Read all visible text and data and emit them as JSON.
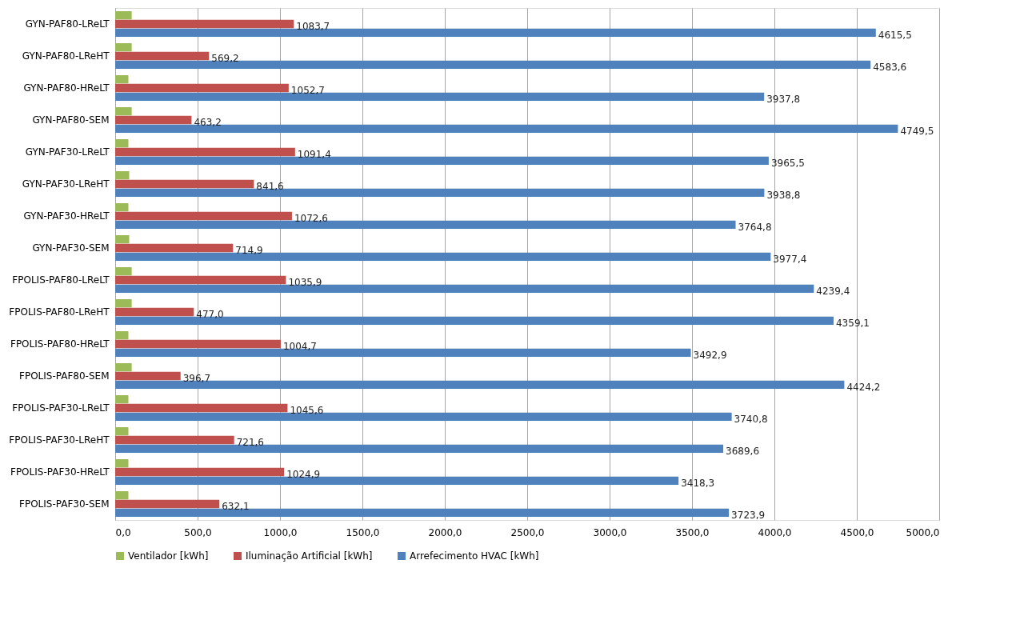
{
  "chart_data": {
    "type": "bar",
    "orientation": "horizontal",
    "categories": [
      "GYN-PAF80-LReLT",
      "GYN-PAF80-LReHT",
      "GYN-PAF80-HReLT",
      "GYN-PAF80-SEM",
      "GYN-PAF30-LReLT",
      "GYN-PAF30-LReHT",
      "GYN-PAF30-HReLT",
      "GYN-PAF30-SEM",
      "FPOLIS-PAF80-LReLT",
      "FPOLIS-PAF80-LReHT",
      "FPOLIS-PAF80-HReLT",
      "FPOLIS-PAF80-SEM",
      "FPOLIS-PAF30-LReLT",
      "FPOLIS-PAF30-LReHT",
      "FPOLIS-PAF30-HReLT",
      "FPOLIS-PAF30-SEM"
    ],
    "series": [
      {
        "name": "Ventilador [kWh]",
        "color": "#9bbb59",
        "values": [
          100,
          100,
          80,
          100,
          80,
          85,
          80,
          85,
          100,
          100,
          80,
          100,
          80,
          80,
          80,
          80
        ]
      },
      {
        "name": "Iluminação Artificial [kWh]",
        "color": "#c0504d",
        "values": [
          1083.7,
          569.2,
          1052.7,
          463.2,
          1091.4,
          841.6,
          1072.6,
          714.9,
          1035.9,
          477.0,
          1004.7,
          396.7,
          1045.6,
          721.6,
          1024.9,
          632.1
        ],
        "value_labels": [
          "1083,7",
          "569,2",
          "1052,7",
          "463,2",
          "1091,4",
          "841,6",
          "1072,6",
          "714,9",
          "1035,9",
          "477,0",
          "1004,7",
          "396,7",
          "1045,6",
          "721,6",
          "1024,9",
          "632,1"
        ]
      },
      {
        "name": "Arrefecimento HVAC [kWh]",
        "color": "#4f81bd",
        "values": [
          4615.5,
          4583.6,
          3937.8,
          4749.5,
          3965.5,
          3938.8,
          3764.8,
          3977.4,
          4239.4,
          4359.1,
          3492.9,
          4424.2,
          3740.8,
          3689.6,
          3418.3,
          3723.9
        ],
        "value_labels": [
          "4615,5",
          "4583,6",
          "3937,8",
          "4749,5",
          "3965,5",
          "3938,8",
          "3764,8",
          "3977,4",
          "4239,4",
          "4359,1",
          "3492,9",
          "4424,2",
          "3740,8",
          "3689,6",
          "3418,3",
          "3723,9"
        ]
      }
    ],
    "xlim": [
      0,
      5000
    ],
    "xticks": [
      {
        "value": 0,
        "label": "0,0"
      },
      {
        "value": 500,
        "label": "500,0"
      },
      {
        "value": 1000,
        "label": "1000,0"
      },
      {
        "value": 1500,
        "label": "1500,0"
      },
      {
        "value": 2000,
        "label": "2000,0"
      },
      {
        "value": 2500,
        "label": "2500,0"
      },
      {
        "value": 3000,
        "label": "3000,0"
      },
      {
        "value": 3500,
        "label": "3500,0"
      },
      {
        "value": 4000,
        "label": "4000,0"
      },
      {
        "value": 4500,
        "label": "4500,0"
      },
      {
        "value": 5000,
        "label": "5000,0"
      }
    ],
    "grid": "x",
    "legend": "bottom"
  }
}
